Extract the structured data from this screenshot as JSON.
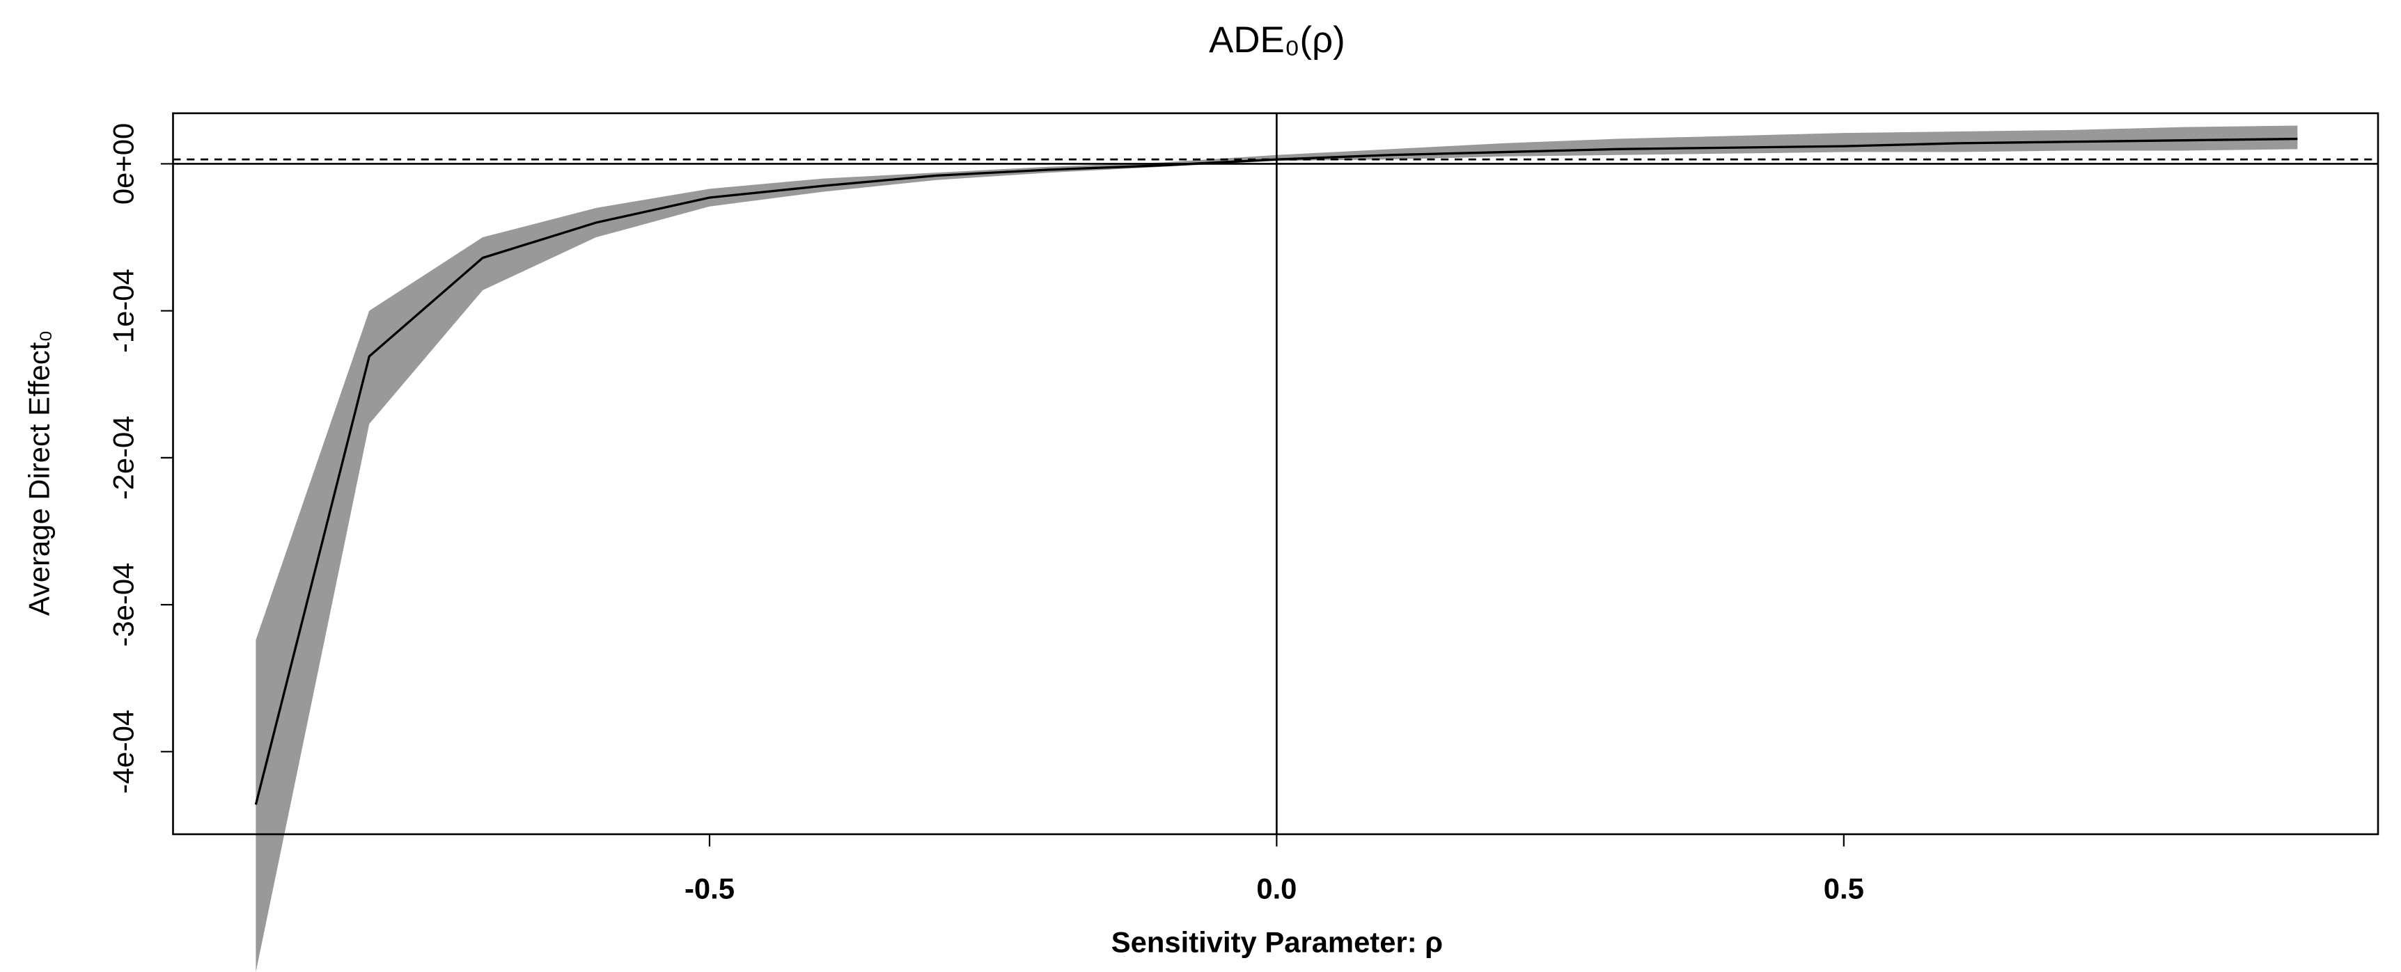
{
  "chart_data": {
    "type": "line",
    "title": "ADE₀(ρ)",
    "x_label": "Sensitivity Parameter: ρ",
    "y_label": "Average Direct Effect₀",
    "x": [
      -0.9,
      -0.8,
      -0.7,
      -0.6,
      -0.5,
      -0.4,
      -0.3,
      -0.2,
      -0.1,
      0,
      0.1,
      0.2,
      0.3,
      0.4,
      0.5,
      0.6,
      0.7,
      0.8,
      0.9
    ],
    "values": [
      -0.000436,
      -0.000131,
      -6.4e-05,
      -4e-05,
      -2.3e-05,
      -1.5e-05,
      -8e-06,
      -4e-06,
      -1e-06,
      3e-06,
      6e-06,
      8e-06,
      1e-05,
      1.1e-05,
      1.2e-05,
      1.4e-05,
      1.5e-05,
      1.6e-05,
      1.7e-05
    ],
    "ci_lower": [
      -0.00055,
      -0.000177,
      -8.6e-05,
      -5e-05,
      -2.9e-05,
      -1.9e-05,
      -1.1e-05,
      -6e-06,
      -2e-06,
      2e-06,
      3e-06,
      5e-06,
      6e-06,
      7e-06,
      8e-06,
      8e-06,
      9e-06,
      9e-06,
      1e-05
    ],
    "ci_upper": [
      -0.000324,
      -0.0001,
      -5e-05,
      -3e-05,
      -1.7e-05,
      -1e-05,
      -6e-06,
      -2e-06,
      1e-06,
      6e-06,
      1e-05,
      1.4e-05,
      1.7e-05,
      1.9e-05,
      2.1e-05,
      2.2e-05,
      2.3e-05,
      2.5e-05,
      2.6e-05
    ],
    "color": "#000000",
    "band_color": "#999999",
    "reference_line": 3e-06,
    "hline": 0,
    "vline": 0,
    "xlim": [
      -0.973,
      0.971
    ],
    "ylim": [
      -0.0004562,
      3.44e-05
    ],
    "xticks": [
      -0.5,
      {
        "value": 0,
        "label": "0.0"
      },
      0.5
    ],
    "yticks": [
      {
        "value": 0,
        "label": "0e+00"
      },
      {
        "value": -0.0001,
        "label": "-1e-04"
      },
      {
        "value": -0.0002,
        "label": "-2e-04"
      },
      {
        "value": -0.0003,
        "label": "-3e-04"
      },
      {
        "value": -0.0004,
        "label": "-4e-04"
      }
    ]
  }
}
